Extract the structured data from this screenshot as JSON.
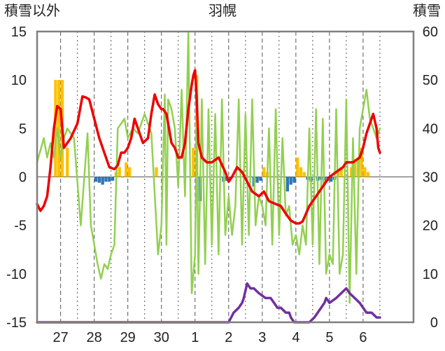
{
  "chart_data": {
    "type": "line",
    "title": "羽幌",
    "ylabel_left": "積雪以外",
    "ylabel_right": "積雪",
    "ylim_left": [
      -15,
      15
    ],
    "ylim_right": [
      0,
      60
    ],
    "yticks_left": [
      "15",
      "10",
      "5",
      "0",
      "-5",
      "-10",
      "-15"
    ],
    "yticks_right": [
      "60",
      "50",
      "40",
      "30",
      "20",
      "10",
      "0"
    ],
    "x_domain": [
      26.3,
      37.5
    ],
    "categories": [
      "27",
      "28",
      "29",
      "30",
      "1",
      "2",
      "3",
      "4",
      "5",
      "6"
    ],
    "category_positions": [
      27,
      28,
      29,
      30,
      31,
      32,
      33,
      34,
      35,
      36
    ],
    "grid": true,
    "colors": {
      "temperature": "#ee0000",
      "wind": "#92d050",
      "snow_depth": "#7030a0",
      "precip_positive": "#ffc000",
      "precip_negative": "#2e75b6",
      "frame": "#7f7f7f",
      "grid": "#555555"
    },
    "series": [
      {
        "key": "temperature",
        "axis": "left",
        "x": [
          26.3,
          26.4,
          26.5,
          26.6,
          26.7,
          26.8,
          26.9,
          27.0,
          27.1,
          27.2,
          27.3,
          27.5,
          27.65,
          27.75,
          27.85,
          28.0,
          28.15,
          28.3,
          28.45,
          28.6,
          28.7,
          28.8,
          28.9,
          29.0,
          29.1,
          29.2,
          29.3,
          29.45,
          29.6,
          29.7,
          29.8,
          29.9,
          30.0,
          30.05,
          30.15,
          30.3,
          30.4,
          30.5,
          30.6,
          30.7,
          30.8,
          30.9,
          30.95,
          31.0,
          31.05,
          31.1,
          31.2,
          31.35,
          31.5,
          31.7,
          31.9,
          32.0,
          32.1,
          32.25,
          32.4,
          32.55,
          32.7,
          32.9,
          33.05,
          33.2,
          33.4,
          33.55,
          33.7,
          33.85,
          34.0,
          34.1,
          34.2,
          34.3,
          34.4,
          34.6,
          34.8,
          35.0,
          35.2,
          35.4,
          35.5,
          35.7,
          35.9,
          36.0,
          36.1,
          36.2,
          36.3,
          36.4,
          36.45,
          36.5
        ],
        "values": [
          -2.8,
          -3.5,
          -3.0,
          -2.0,
          1.0,
          5.0,
          7.3,
          7.0,
          3.0,
          3.5,
          4.0,
          5.5,
          8.3,
          8.2,
          8.0,
          6.0,
          4.0,
          2.5,
          1.0,
          0.8,
          1.2,
          2.5,
          2.5,
          3.0,
          4.0,
          6.0,
          5.0,
          3.5,
          4.0,
          6.5,
          8.5,
          7.5,
          7.0,
          7.0,
          6.5,
          3.5,
          3.0,
          2.0,
          2.0,
          3.5,
          7.0,
          9.5,
          10.5,
          11.0,
          8.0,
          3.5,
          2.0,
          1.5,
          1.5,
          2.0,
          0.5,
          -0.5,
          0.0,
          1.0,
          0.5,
          -0.5,
          -1.5,
          -2.0,
          -1.5,
          -2.5,
          -2.8,
          -3.0,
          -3.8,
          -4.5,
          -4.8,
          -4.8,
          -4.6,
          -3.8,
          -3.0,
          -2.0,
          -1.0,
          0.0,
          0.5,
          1.0,
          1.5,
          1.5,
          2.0,
          3.0,
          4.5,
          5.5,
          6.5,
          5.0,
          3.0,
          2.5
        ]
      },
      {
        "key": "wind",
        "axis": "left",
        "x": [
          26.3,
          26.5,
          26.6,
          26.7,
          26.8,
          26.9,
          27.0,
          27.1,
          27.2,
          27.4,
          27.6,
          27.8,
          27.9,
          28.0,
          28.1,
          28.2,
          28.3,
          28.4,
          28.5,
          28.6,
          28.7,
          28.8,
          28.9,
          29.0,
          29.15,
          29.3,
          29.5,
          29.7,
          29.9,
          30.0,
          30.1,
          30.15,
          30.2,
          30.3,
          30.4,
          30.5,
          30.6,
          30.7,
          30.8,
          30.9,
          31.0,
          31.05,
          31.1,
          31.2,
          31.3,
          31.4,
          31.5,
          31.6,
          31.7,
          31.8,
          31.9,
          32.0,
          32.1,
          32.2,
          32.3,
          32.4,
          32.5,
          32.6,
          32.7,
          32.8,
          32.9,
          33.0,
          33.1,
          33.2,
          33.3,
          33.4,
          33.5,
          33.6,
          33.7,
          33.8,
          33.9,
          34.0,
          34.1,
          34.2,
          34.3,
          34.4,
          34.5,
          34.6,
          34.7,
          34.8,
          34.9,
          35.0,
          35.1,
          35.2,
          35.3,
          35.4,
          35.5,
          35.6,
          35.7,
          35.8,
          35.9,
          36.0,
          36.1,
          36.2,
          36.3,
          36.4,
          36.5
        ],
        "values": [
          1.5,
          4.0,
          2.0,
          3.5,
          2.0,
          5.0,
          2.0,
          4.0,
          5.0,
          4.0,
          -5.0,
          4.5,
          -5.0,
          -7.0,
          -9.0,
          -10.5,
          -9.0,
          -9.5,
          -8.0,
          -7.0,
          5.0,
          5.5,
          6.0,
          4.0,
          5.0,
          4.5,
          6.5,
          4.5,
          -8.0,
          -5.0,
          8.5,
          -7.0,
          8.0,
          7.0,
          5.0,
          -1.0,
          9.0,
          -2.0,
          15.0,
          -12.0,
          -8.0,
          5.0,
          -10.0,
          8.0,
          -9.0,
          7.0,
          -7.0,
          6.5,
          -8.0,
          8.0,
          -6.0,
          -2.0,
          -6.0,
          -3.0,
          8.0,
          -7.0,
          6.5,
          -6.0,
          8.0,
          -5.0,
          -2.0,
          -3.0,
          -5.0,
          5.0,
          -7.0,
          7.0,
          -6.0,
          4.0,
          -4.0,
          -3.0,
          -7.0,
          -6.0,
          -8.0,
          -5.0,
          -7.0,
          5.0,
          -7.0,
          7.0,
          -9.0,
          6.0,
          -10.0,
          -8.0,
          -9.0,
          7.0,
          -10.0,
          -8.0,
          8.0,
          -13.0,
          4.0,
          -10.0,
          5.0,
          7.0,
          9.0,
          6.0,
          5.0,
          4.0,
          5.0
        ]
      },
      {
        "key": "snow_depth",
        "axis": "right",
        "x": [
          26.3,
          32.0,
          32.15,
          32.3,
          32.4,
          32.45,
          32.55,
          32.65,
          32.75,
          32.9,
          33.1,
          33.25,
          33.35,
          33.45,
          33.55,
          33.7,
          33.8,
          33.85,
          33.95,
          34.1,
          34.2,
          34.3,
          34.4,
          34.55,
          34.65,
          34.75,
          34.85,
          34.9,
          35.0,
          35.2,
          35.35,
          35.5,
          35.6,
          35.75,
          35.9,
          36.0,
          36.1,
          36.25,
          36.4,
          36.5
        ],
        "values": [
          0,
          0,
          2,
          3,
          4,
          5,
          8,
          7,
          7,
          6,
          5,
          5,
          4,
          3,
          3,
          2,
          2,
          1,
          0,
          0,
          0,
          0,
          0,
          1,
          2,
          3,
          4,
          5,
          4,
          5,
          6,
          7,
          6,
          5,
          4,
          3,
          2,
          2,
          1,
          1
        ]
      }
    ],
    "precip_bars": {
      "axis": "left",
      "x": [
        26.85,
        26.95,
        27.05,
        27.2,
        28.05,
        28.15,
        28.25,
        28.35,
        28.45,
        28.55,
        28.65,
        28.75,
        28.95,
        29.05,
        29.85,
        30.95,
        31.05,
        31.15,
        31.85,
        31.95,
        32.05,
        32.75,
        32.85,
        32.95,
        33.05,
        33.15,
        33.75,
        33.85,
        33.95,
        34.05,
        34.15,
        34.25,
        34.35,
        34.45,
        34.65,
        34.75,
        34.85,
        34.95,
        35.05,
        35.15,
        35.25,
        35.35,
        35.65,
        35.75,
        35.85,
        35.95,
        36.05,
        36.15
      ],
      "values": [
        10.0,
        10.0,
        10.0,
        3.0,
        -0.5,
        -0.6,
        -0.8,
        -0.5,
        -0.5,
        -0.4,
        0.5,
        1.0,
        1.5,
        1.0,
        1.0,
        3.0,
        10.5,
        -2.5,
        -0.5,
        -0.4,
        -0.3,
        -1.0,
        -0.6,
        -0.4,
        1.0,
        0.5,
        -1.5,
        -0.8,
        -0.6,
        2.0,
        1.0,
        0.5,
        -0.3,
        -0.5,
        -0.4,
        -0.3,
        -0.8,
        -0.4,
        -0.5,
        -0.3,
        0.5,
        1.0,
        1.0,
        1.5,
        2.0,
        3.0,
        1.0,
        0.5
      ]
    }
  }
}
